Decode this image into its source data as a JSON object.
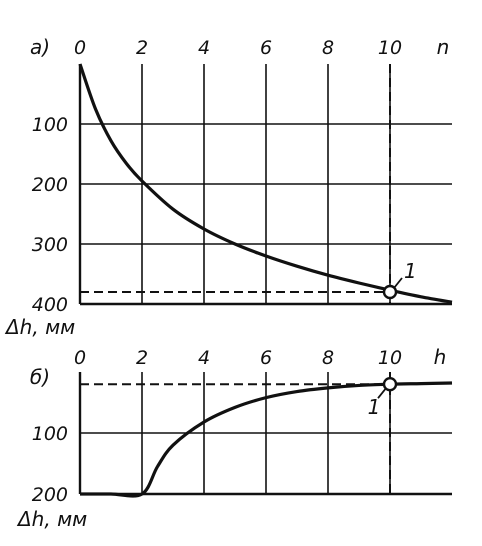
{
  "chart_data": [
    {
      "type": "line",
      "panel_label": "а)",
      "x_axis_label": "n",
      "y_axis_label": "Δh, мм",
      "x_ticks": [
        "0",
        "2",
        "4",
        "6",
        "8",
        "10"
      ],
      "y_ticks": [
        "100",
        "200",
        "300",
        "400"
      ],
      "xlim": [
        0,
        12
      ],
      "ylim": [
        0,
        400
      ],
      "y_inverted": true,
      "grid": true,
      "series": [
        {
          "x": [
            0,
            0.5,
            1,
            1.5,
            2,
            3,
            4,
            5,
            6,
            7,
            8,
            9,
            10,
            11,
            12
          ],
          "values": [
            0,
            75,
            128,
            166,
            195,
            242,
            275,
            300,
            320,
            337,
            352,
            365,
            377,
            388,
            397
          ]
        }
      ],
      "marker": {
        "label": "1",
        "x": 10,
        "y": 380
      }
    },
    {
      "type": "line",
      "panel_label": "б)",
      "x_axis_label": "h",
      "y_axis_label": "Δh, мм",
      "x_ticks": [
        "0",
        "2",
        "4",
        "6",
        "8",
        "10"
      ],
      "y_ticks": [
        "100",
        "200"
      ],
      "xlim": [
        0,
        12
      ],
      "ylim": [
        0,
        200
      ],
      "y_inverted": true,
      "grid": true,
      "series": [
        {
          "x": [
            0,
            1,
            2,
            2.5,
            3,
            4,
            5,
            6,
            7,
            8,
            9,
            10,
            11,
            12
          ],
          "values": [
            200,
            200,
            200,
            155,
            120,
            82,
            58,
            42,
            32,
            26,
            22,
            20,
            19,
            18
          ]
        }
      ],
      "marker": {
        "label": "1",
        "x": 10,
        "y": 20
      }
    }
  ]
}
